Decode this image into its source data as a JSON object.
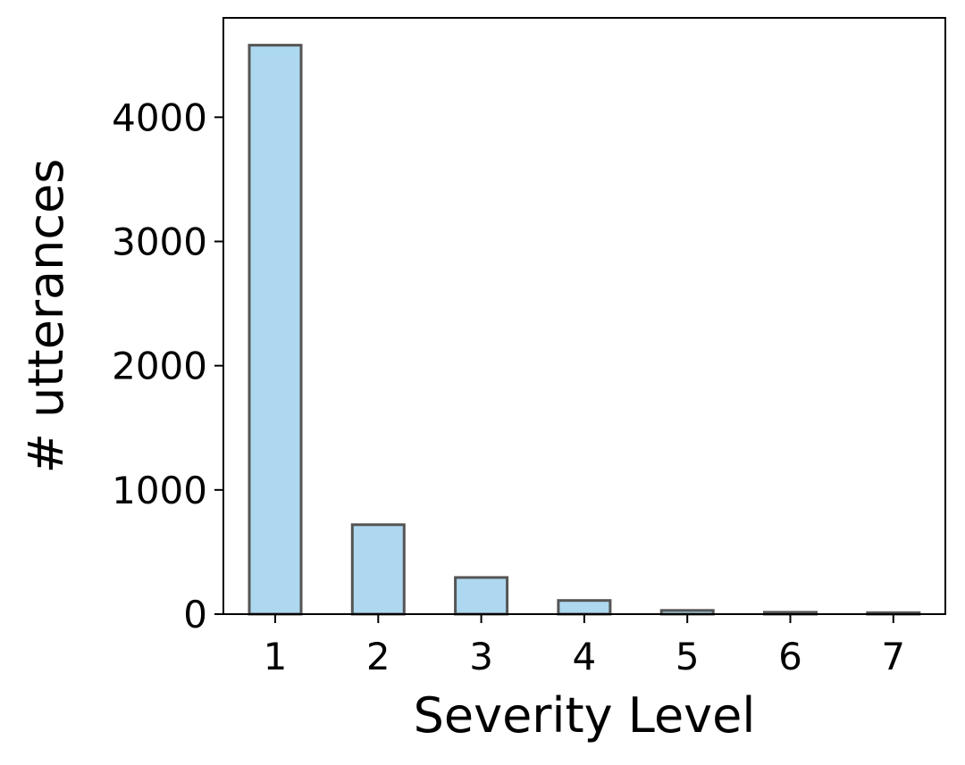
{
  "chart_data": {
    "type": "bar",
    "title": "",
    "xlabel": "Severity Level",
    "ylabel": "# utterances",
    "categories": [
      "1",
      "2",
      "3",
      "4",
      "5",
      "6",
      "7"
    ],
    "values": [
      4580,
      720,
      295,
      110,
      30,
      15,
      12
    ],
    "ylim": [
      0,
      4800
    ],
    "yticks": [
      0,
      1000,
      2000,
      3000,
      4000
    ],
    "grid": false,
    "legend": "none",
    "colors": {
      "bar_fill": "#add8ef",
      "bar_edge": "#555555",
      "axis": "#000000"
    }
  }
}
